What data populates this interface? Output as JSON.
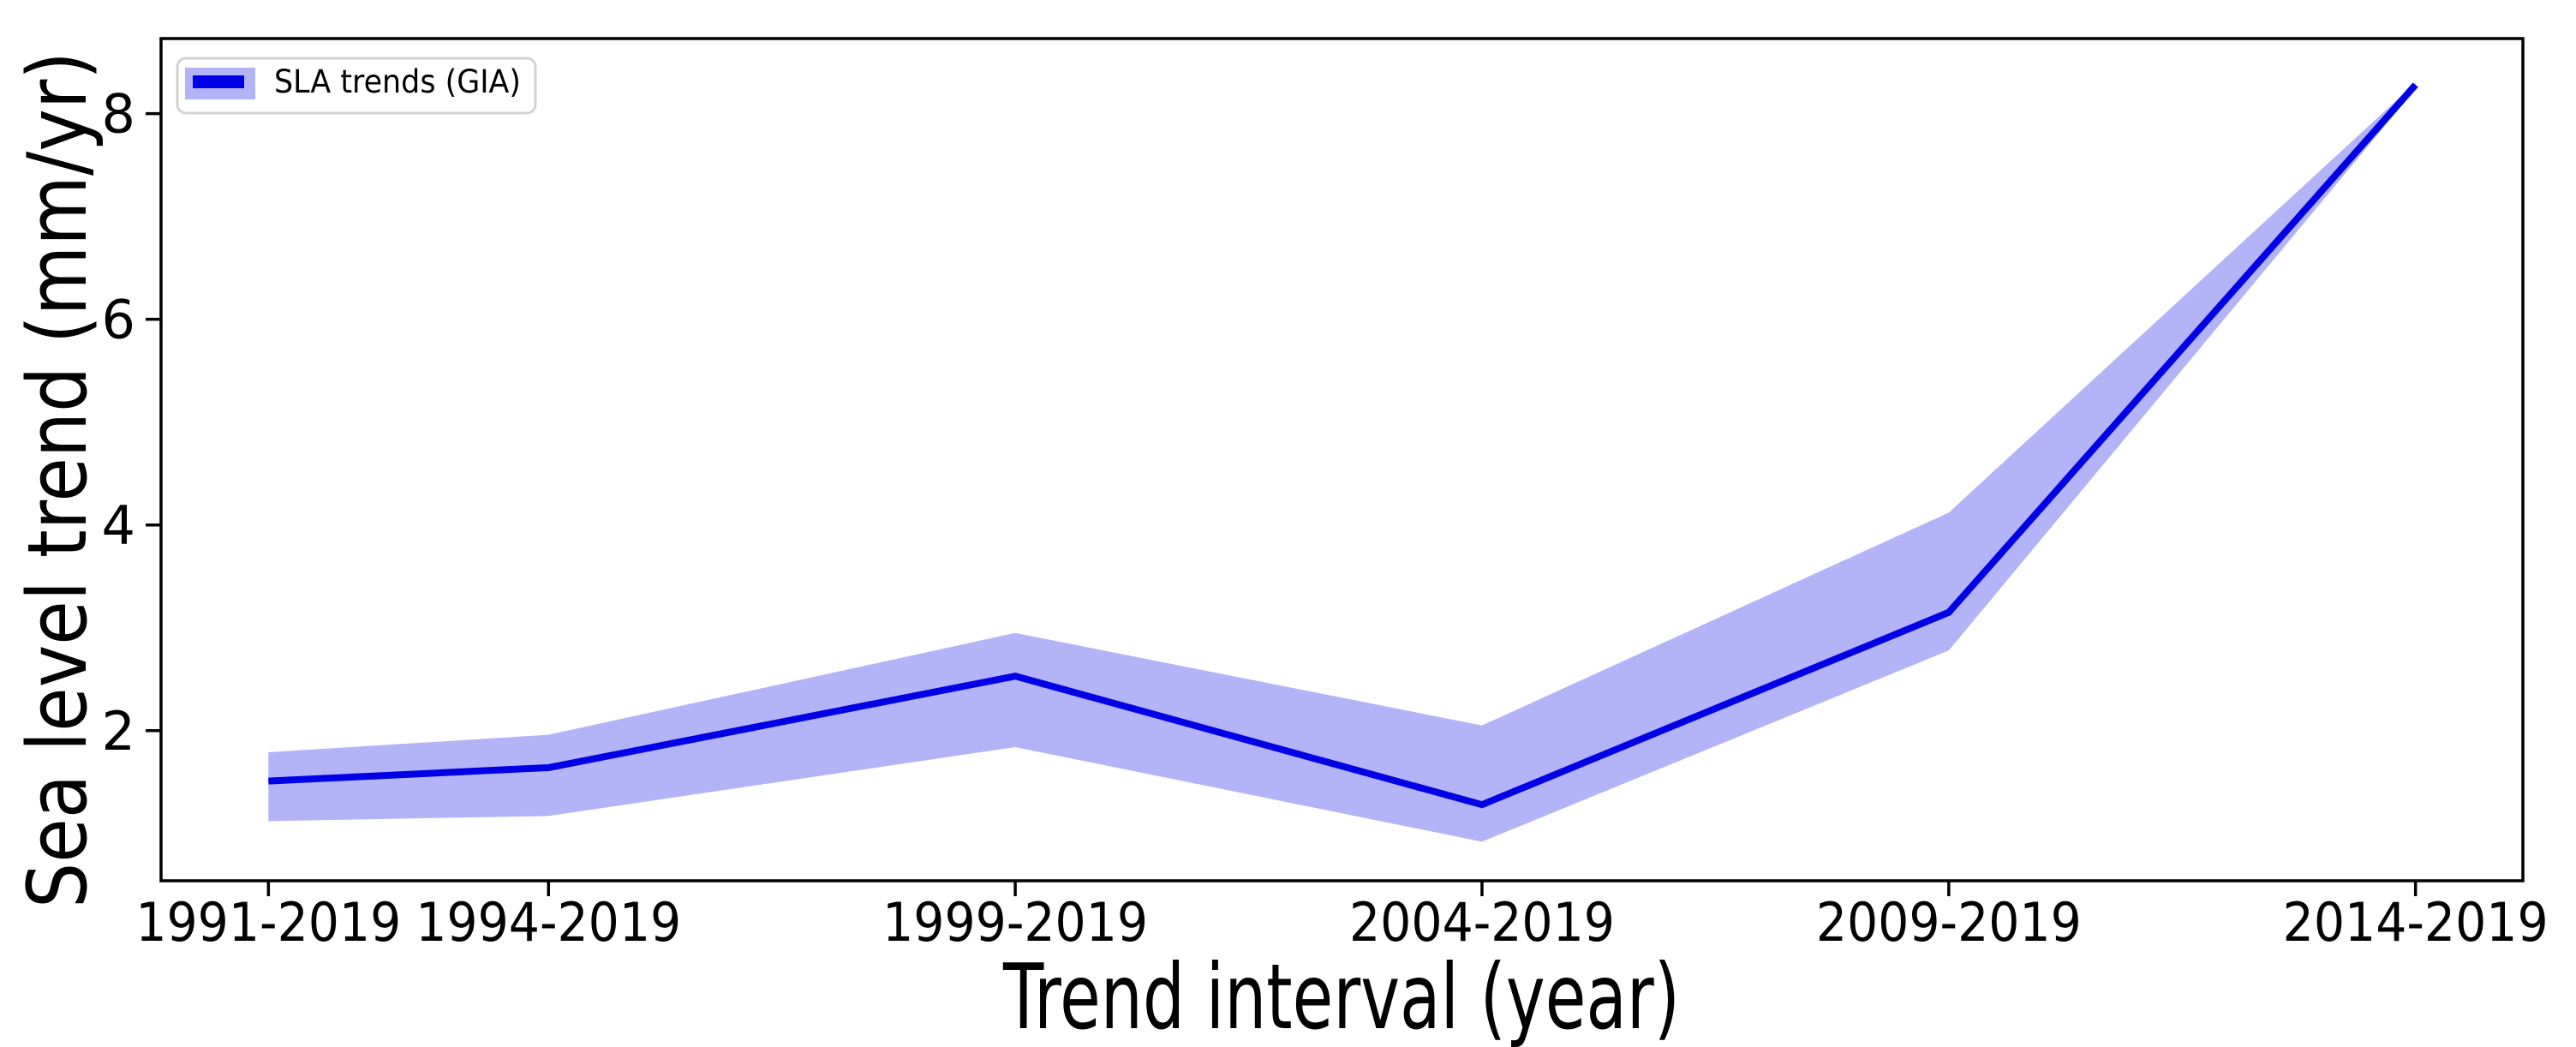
{
  "figure": {
    "background": "#ffffff",
    "spine_color": "#000000",
    "tick_color": "#000000"
  },
  "legend": {
    "label": "SLA trends (GIA)",
    "border_color": "#d3d3d3",
    "background": "#ffffff"
  },
  "chart_data": {
    "type": "line",
    "title": "",
    "xlabel": "Trend interval (year)",
    "ylabel": "Sea level trend (mm/yr)",
    "categories": [
      "1991-2019",
      "1994-2019",
      "1999-2019",
      "2004-2019",
      "2009-2019",
      "2014-2019"
    ],
    "x_years": [
      1991,
      1994,
      1999,
      2004,
      2009,
      2014
    ],
    "series": [
      {
        "name": "SLA trends (GIA)",
        "values": [
          1.51,
          1.64,
          2.53,
          1.28,
          3.15,
          8.28
        ],
        "upper": [
          1.79,
          1.96,
          2.95,
          2.05,
          4.12,
          8.3
        ],
        "lower": [
          1.12,
          1.17,
          1.84,
          0.92,
          2.78,
          8.24
        ],
        "line_color": "#0000e6",
        "band_color": "#b3b3f7"
      }
    ],
    "yticks": [
      2,
      4,
      6,
      8
    ],
    "ylim": [
      0.54,
      8.73
    ],
    "xlim": [
      1989.85,
      2015.15
    ],
    "grid": false,
    "legend_position": "upper left"
  }
}
